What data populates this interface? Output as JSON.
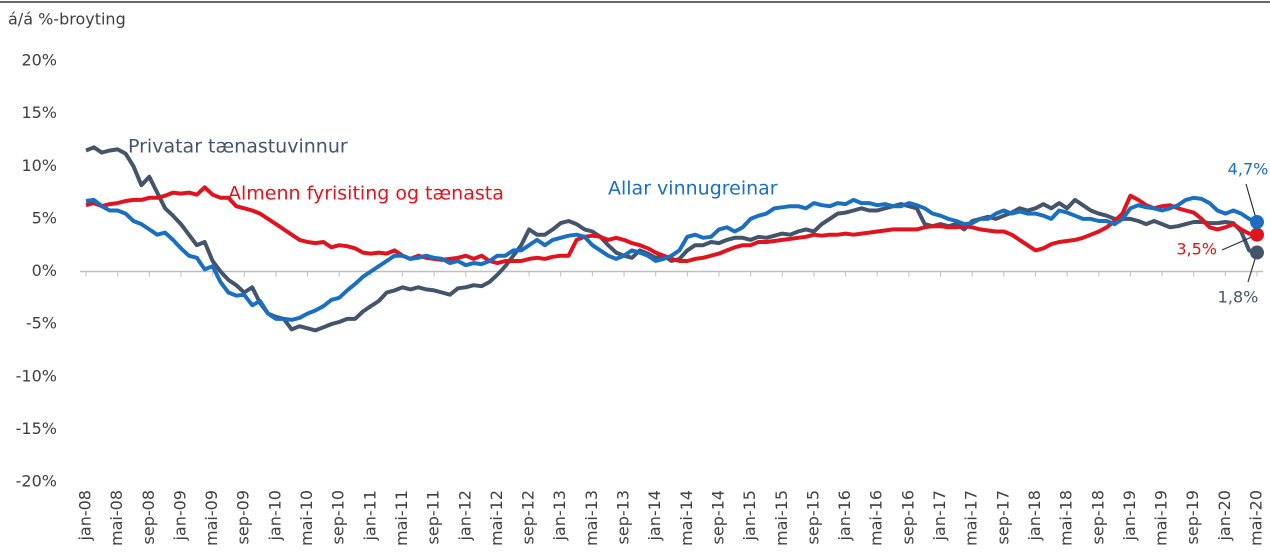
{
  "chart_data": {
    "type": "line",
    "ylabel": "á/á %-broyting",
    "categories": [
      "jan-08",
      null,
      null,
      null,
      "mai-08",
      null,
      null,
      null,
      "sep-08",
      null,
      null,
      null,
      "jan-09",
      null,
      null,
      null,
      "mai-09",
      null,
      null,
      null,
      "sep-09",
      null,
      null,
      null,
      "jan-10",
      null,
      null,
      null,
      "mai-10",
      null,
      null,
      null,
      "sep-10",
      null,
      null,
      null,
      "jan-11",
      null,
      null,
      null,
      "mai-11",
      null,
      null,
      null,
      "sep-11",
      null,
      null,
      null,
      "jan-12",
      null,
      null,
      null,
      "mai-12",
      null,
      null,
      null,
      "sep-12",
      null,
      null,
      null,
      "jan-13",
      null,
      null,
      null,
      "mai-13",
      null,
      null,
      null,
      "sep-13",
      null,
      null,
      null,
      "jan-14",
      null,
      null,
      null,
      "mai-14",
      null,
      null,
      null,
      "sep-14",
      null,
      null,
      null,
      "jan-15",
      null,
      null,
      null,
      "mai-15",
      null,
      null,
      null,
      "sep-15",
      null,
      null,
      null,
      "jan-16",
      null,
      null,
      null,
      "mai-16",
      null,
      null,
      null,
      "sep-16",
      null,
      null,
      null,
      "jan-17",
      null,
      null,
      null,
      "mai-17",
      null,
      null,
      null,
      "sep-17",
      null,
      null,
      null,
      "jan-18",
      null,
      null,
      null,
      "mai-18",
      null,
      null,
      null,
      "sep-18",
      null,
      null,
      null,
      "jan-19",
      null,
      null,
      null,
      "mai-19",
      null,
      null,
      null,
      "sep-19",
      null,
      null,
      null,
      "jan-20",
      null,
      null,
      null,
      "mai-20"
    ],
    "series": [
      {
        "name": "Privatar tænastuvinnur",
        "color": "#44546a",
        "values": [
          11.5,
          11.8,
          11.3,
          11.5,
          11.6,
          11.2,
          10,
          8.2,
          9,
          7.5,
          6,
          5.3,
          4.5,
          3.5,
          2.5,
          2.8,
          1,
          0,
          -0.8,
          -1.3,
          -2,
          -1.5,
          -3,
          -4,
          -4.3,
          -4.5,
          -5.5,
          -5.2,
          -5.4,
          -5.6,
          -5.3,
          -5,
          -4.8,
          -4.5,
          -4.5,
          -3.8,
          -3.3,
          -2.8,
          -2,
          -1.8,
          -1.5,
          -1.7,
          -1.5,
          -1.7,
          -1.8,
          -2,
          -2.2,
          -1.6,
          -1.5,
          -1.3,
          -1.4,
          -1,
          -0.3,
          0.5,
          1.5,
          2.5,
          4,
          3.5,
          3.5,
          4,
          4.6,
          4.8,
          4.5,
          4,
          3.8,
          3.3,
          2.5,
          1.8,
          1.5,
          1.3,
          2,
          1.7,
          1.3,
          1.5,
          1,
          1.2,
          2,
          2.5,
          2.5,
          2.8,
          2.7,
          3,
          3.2,
          3.2,
          3,
          3.3,
          3.2,
          3.4,
          3.6,
          3.5,
          3.8,
          4,
          3.8,
          4.5,
          5,
          5.5,
          5.6,
          5.8,
          6,
          5.8,
          5.8,
          6,
          6.2,
          6.4,
          6.2,
          6,
          4.5,
          4.3,
          4.5,
          4.3,
          4.5,
          4,
          4.8,
          5,
          5.2,
          5,
          5.3,
          5.6,
          6,
          5.8,
          6,
          6.4,
          6,
          6.5,
          6,
          6.8,
          6.3,
          5.8,
          5.5,
          5.3,
          5,
          5,
          5,
          4.8,
          4.5,
          4.8,
          4.5,
          4.2,
          4.3,
          4.5,
          4.7,
          4.7,
          4.6,
          4.6,
          4.7,
          4.6,
          3.8,
          2,
          1.8
        ],
        "value_labels": [
          null,
          null,
          null,
          null,
          null,
          null,
          null,
          null,
          null,
          null,
          null,
          null,
          null,
          null,
          null,
          null,
          null,
          null,
          null,
          null,
          null,
          null,
          null,
          null,
          null,
          null,
          null,
          null,
          null,
          null,
          null,
          null,
          null,
          null,
          null,
          null,
          null,
          null,
          null,
          null,
          null,
          null,
          null,
          null,
          null,
          null,
          null,
          null,
          null,
          null,
          null,
          null,
          null,
          null,
          null,
          null,
          null,
          null,
          null,
          null,
          null,
          null,
          null,
          null,
          null,
          null,
          null,
          null,
          null,
          null,
          null,
          null,
          null,
          null,
          null,
          null,
          null,
          null,
          null,
          null,
          null,
          null,
          null,
          null,
          null,
          null,
          null,
          null,
          null,
          null,
          null,
          null,
          null,
          null,
          null,
          null,
          null,
          null,
          null,
          null,
          null,
          null,
          null,
          null,
          null,
          null,
          null,
          null,
          null,
          null,
          null,
          null,
          null,
          null,
          null,
          null,
          null,
          null,
          null,
          null,
          null,
          null,
          null,
          null,
          null,
          null,
          null,
          null,
          null,
          null,
          null,
          null,
          null,
          null,
          null,
          null,
          null,
          null,
          null,
          null,
          null,
          null,
          null,
          null,
          null,
          null,
          null,
          null,
          "1,8%"
        ]
      },
      {
        "name": "Almenn fyrisiting og tænasta",
        "color": "#e0141e",
        "values": [
          6.3,
          6.5,
          6.2,
          6.4,
          6.5,
          6.7,
          6.8,
          6.8,
          7,
          7,
          7.2,
          7.5,
          7.4,
          7.5,
          7.3,
          8,
          7.3,
          7,
          7,
          6.2,
          6,
          5.8,
          5.5,
          5,
          4.5,
          4,
          3.5,
          3,
          2.8,
          2.7,
          2.8,
          2.3,
          2.5,
          2.4,
          2.2,
          1.8,
          1.7,
          1.8,
          1.7,
          2,
          1.5,
          1.2,
          1.5,
          1.3,
          1.2,
          1.1,
          1.2,
          1.3,
          1.5,
          1.2,
          1.5,
          1,
          0.8,
          1,
          1,
          1,
          1.2,
          1.3,
          1.2,
          1.4,
          1.5,
          1.5,
          3,
          3.3,
          3.4,
          3.3,
          3,
          3.2,
          3,
          2.7,
          2.5,
          2.2,
          1.8,
          1.5,
          1.2,
          1,
          1,
          1.2,
          1.3,
          1.5,
          1.7,
          2,
          2.3,
          2.5,
          2.5,
          2.8,
          2.8,
          2.9,
          3,
          3.1,
          3.2,
          3.3,
          3.5,
          3.4,
          3.5,
          3.5,
          3.6,
          3.5,
          3.6,
          3.7,
          3.8,
          3.9,
          4,
          4,
          4,
          4,
          4.2,
          4.3,
          4.3,
          4.2,
          4.2,
          4.3,
          4.2,
          4,
          3.9,
          3.8,
          3.8,
          3.5,
          3,
          2.5,
          2,
          2.2,
          2.6,
          2.8,
          2.9,
          3,
          3.2,
          3.5,
          3.8,
          4.2,
          4.8,
          5.5,
          7.2,
          6.8,
          6.3,
          6,
          6.2,
          6.3,
          6,
          5.8,
          5.6,
          5,
          4.2,
          4,
          4.2,
          4.5,
          4,
          3.6,
          3.5
        ],
        "value_labels": [
          null,
          null,
          null,
          null,
          null,
          null,
          null,
          null,
          null,
          null,
          null,
          null,
          null,
          null,
          null,
          null,
          null,
          null,
          null,
          null,
          null,
          null,
          null,
          null,
          null,
          null,
          null,
          null,
          null,
          null,
          null,
          null,
          null,
          null,
          null,
          null,
          null,
          null,
          null,
          null,
          null,
          null,
          null,
          null,
          null,
          null,
          null,
          null,
          null,
          null,
          null,
          null,
          null,
          null,
          null,
          null,
          null,
          null,
          null,
          null,
          null,
          null,
          null,
          null,
          null,
          null,
          null,
          null,
          null,
          null,
          null,
          null,
          null,
          null,
          null,
          null,
          null,
          null,
          null,
          null,
          null,
          null,
          null,
          null,
          null,
          null,
          null,
          null,
          null,
          null,
          null,
          null,
          null,
          null,
          null,
          null,
          null,
          null,
          null,
          null,
          null,
          null,
          null,
          null,
          null,
          null,
          null,
          null,
          null,
          null,
          null,
          null,
          null,
          null,
          null,
          null,
          null,
          null,
          null,
          null,
          null,
          null,
          null,
          null,
          null,
          null,
          null,
          null,
          null,
          null,
          null,
          null,
          null,
          null,
          null,
          null,
          null,
          null,
          null,
          null,
          null,
          null,
          null,
          null,
          null,
          null,
          null,
          null,
          "3,5%"
        ]
      },
      {
        "name": "Allar vinnugreinar",
        "color": "#1a6fc0",
        "values": [
          6.7,
          6.8,
          6.2,
          5.8,
          5.8,
          5.5,
          4.8,
          4.5,
          4,
          3.5,
          3.7,
          3,
          2.2,
          1.5,
          1.3,
          0.2,
          0.5,
          -1,
          -2,
          -2.3,
          -2.2,
          -3.2,
          -2.8,
          -4,
          -4.5,
          -4.5,
          -4.6,
          -4.4,
          -4,
          -3.7,
          -3.3,
          -2.7,
          -2.5,
          -1.8,
          -1.2,
          -0.5,
          0,
          0.5,
          1,
          1.5,
          1.5,
          1.2,
          1.3,
          1.5,
          1.3,
          1.2,
          0.8,
          1,
          0.6,
          0.8,
          0.7,
          1,
          1.5,
          1.5,
          2,
          2,
          2.5,
          3,
          2.5,
          3,
          3.2,
          3.4,
          3.5,
          3.3,
          2.5,
          2,
          1.5,
          1.2,
          1.5,
          2,
          1.8,
          1.5,
          1,
          1.2,
          1.5,
          2,
          3.3,
          3.5,
          3.2,
          3.3,
          4,
          4.2,
          3.8,
          4.2,
          5,
          5.3,
          5.5,
          6,
          6.1,
          6.2,
          6.2,
          6,
          6.5,
          6.3,
          6.2,
          6.5,
          6.4,
          6.8,
          6.5,
          6.5,
          6.3,
          6.4,
          6.2,
          6.2,
          6.5,
          6.3,
          6,
          5.5,
          5.3,
          5,
          4.8,
          4.5,
          4.6,
          5,
          5,
          5.5,
          5.8,
          5.5,
          5.7,
          5.5,
          5.5,
          5.3,
          5,
          5.8,
          5.6,
          5.3,
          5,
          5,
          4.8,
          4.8,
          4.5,
          5,
          6,
          6.3,
          6.1,
          6,
          5.8,
          6,
          6.3,
          6.8,
          7,
          6.9,
          6.5,
          5.8,
          5.5,
          5.8,
          5.5,
          5,
          4.7
        ],
        "value_labels": [
          null,
          null,
          null,
          null,
          null,
          null,
          null,
          null,
          null,
          null,
          null,
          null,
          null,
          null,
          null,
          null,
          null,
          null,
          null,
          null,
          null,
          null,
          null,
          null,
          null,
          null,
          null,
          null,
          null,
          null,
          null,
          null,
          null,
          null,
          null,
          null,
          null,
          null,
          null,
          null,
          null,
          null,
          null,
          null,
          null,
          null,
          null,
          null,
          null,
          null,
          null,
          null,
          null,
          null,
          null,
          null,
          null,
          null,
          null,
          null,
          null,
          null,
          null,
          null,
          null,
          null,
          null,
          null,
          null,
          null,
          null,
          null,
          null,
          null,
          null,
          null,
          null,
          null,
          null,
          null,
          null,
          null,
          null,
          null,
          null,
          null,
          null,
          null,
          null,
          null,
          null,
          null,
          null,
          null,
          null,
          null,
          null,
          null,
          null,
          null,
          null,
          null,
          null,
          null,
          null,
          null,
          null,
          null,
          null,
          null,
          null,
          null,
          null,
          null,
          null,
          null,
          null,
          null,
          null,
          null,
          null,
          null,
          null,
          null,
          null,
          null,
          null,
          null,
          null,
          null,
          null,
          null,
          null,
          null,
          null,
          null,
          null,
          null,
          null,
          null,
          null,
          null,
          null,
          null,
          null,
          null,
          null,
          null,
          "4,7%"
        ]
      }
    ],
    "ylim": [
      -20,
      20
    ],
    "yticks": [
      {
        "value": -20,
        "label": "-20%"
      },
      {
        "value": -15,
        "label": "-15%"
      },
      {
        "value": -10,
        "label": "-10%"
      },
      {
        "value": -5,
        "label": "-5%"
      },
      {
        "value": 0,
        "label": "0%"
      },
      {
        "value": 5,
        "label": "5%"
      },
      {
        "value": 10,
        "label": "10%"
      },
      {
        "value": 15,
        "label": "15%"
      },
      {
        "value": 20,
        "label": "20%"
      }
    ],
    "grid": false
  }
}
